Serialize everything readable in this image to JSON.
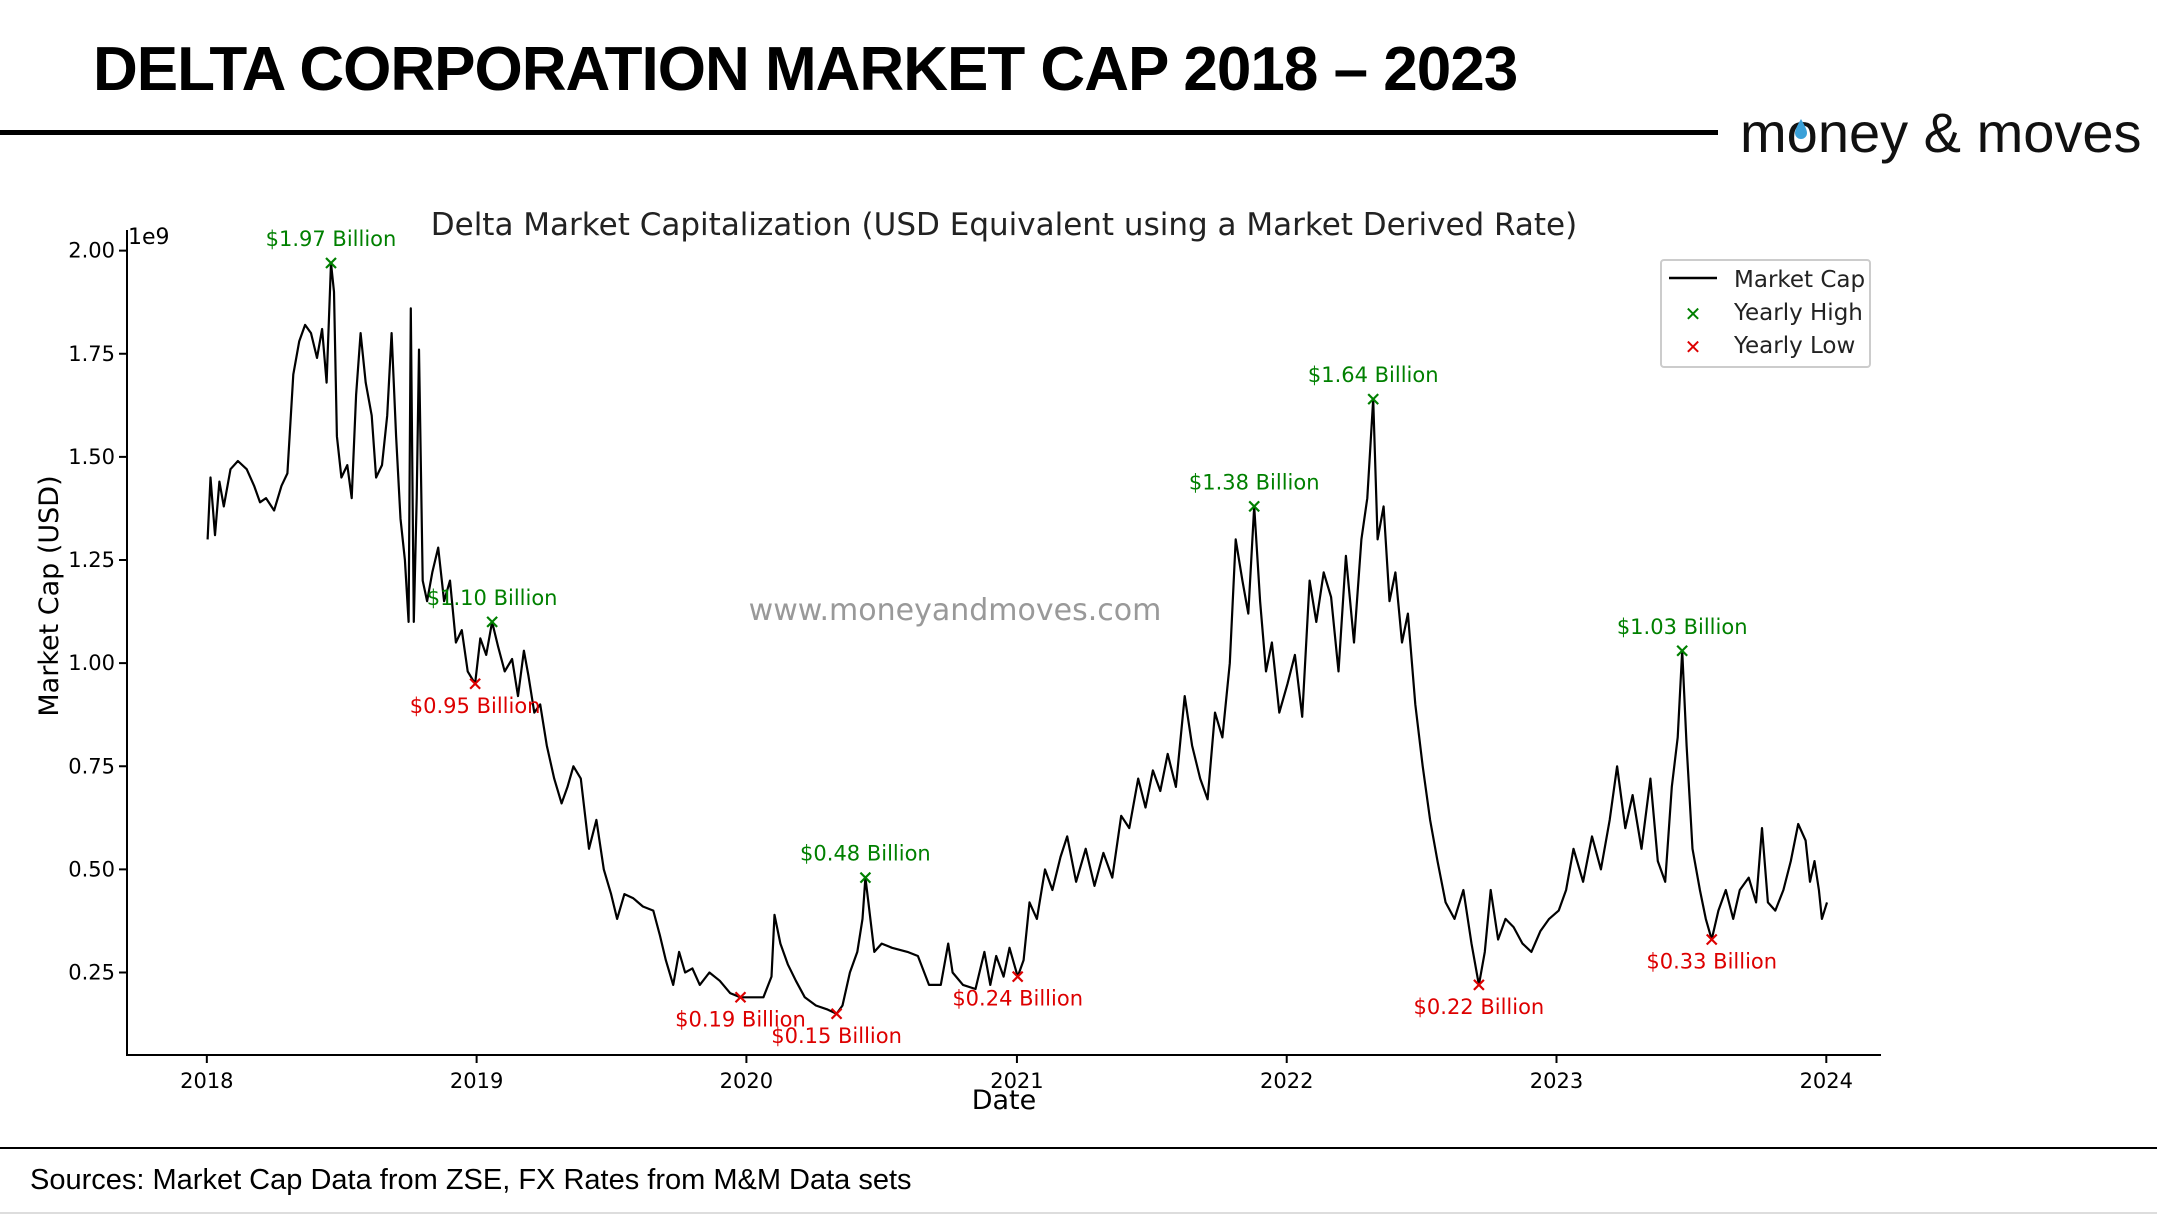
{
  "header": {
    "title": "DELTA CORPORATION MARKET CAP 2018 – 2023",
    "logo_text": "money & moves",
    "logo_prefix": "m",
    "logo_o": "o",
    "logo_suffix": "ney & moves",
    "accent_color": "#3aa0d8"
  },
  "footer": {
    "sources": "Sources: Market Cap Data from ZSE, FX Rates from M&M Data sets"
  },
  "chart_data": {
    "type": "line",
    "title": "Delta Market Capitalization (USD Equivalent using a Market Derived Rate)",
    "xlabel": "Date",
    "ylabel": "Market Cap (USD)",
    "y_offset_label": "1e9",
    "watermark": "www.moneyandmoves.com",
    "xlim": [
      "2017-09-15",
      "2024-03-15"
    ],
    "ylim": [
      0.05,
      2.05
    ],
    "y_scale": 1000000000,
    "x_ticks": [
      "2018",
      "2019",
      "2020",
      "2021",
      "2022",
      "2023",
      "2024"
    ],
    "y_ticks": [
      "0.25",
      "0.50",
      "0.75",
      "1.00",
      "1.25",
      "1.50",
      "1.75",
      "2.00"
    ],
    "y_tick_values": [
      0.25,
      0.5,
      0.75,
      1.0,
      1.25,
      1.5,
      1.75,
      2.0
    ],
    "grid": false,
    "legend": {
      "position": "top-right",
      "entries": [
        "Market Cap",
        "Yearly High",
        "Yearly Low"
      ]
    },
    "colors": {
      "line": "#000000",
      "high": "#008000",
      "low": "#dd0000",
      "watermark": "#999999"
    },
    "series": [
      {
        "name": "Market Cap",
        "points": [
          [
            "2018-01-02",
            1.3
          ],
          [
            "2018-01-06",
            1.45
          ],
          [
            "2018-01-12",
            1.31
          ],
          [
            "2018-01-18",
            1.44
          ],
          [
            "2018-01-24",
            1.38
          ],
          [
            "2018-02-02",
            1.47
          ],
          [
            "2018-02-12",
            1.49
          ],
          [
            "2018-02-24",
            1.47
          ],
          [
            "2018-03-06",
            1.43
          ],
          [
            "2018-03-14",
            1.39
          ],
          [
            "2018-03-22",
            1.4
          ],
          [
            "2018-04-02",
            1.37
          ],
          [
            "2018-04-12",
            1.43
          ],
          [
            "2018-04-20",
            1.46
          ],
          [
            "2018-04-28",
            1.7
          ],
          [
            "2018-05-06",
            1.78
          ],
          [
            "2018-05-14",
            1.82
          ],
          [
            "2018-05-22",
            1.8
          ],
          [
            "2018-05-30",
            1.74
          ],
          [
            "2018-06-06",
            1.81
          ],
          [
            "2018-06-12",
            1.68
          ],
          [
            "2018-06-18",
            1.97
          ],
          [
            "2018-06-22",
            1.9
          ],
          [
            "2018-06-26",
            1.55
          ],
          [
            "2018-07-02",
            1.45
          ],
          [
            "2018-07-10",
            1.48
          ],
          [
            "2018-07-16",
            1.4
          ],
          [
            "2018-07-22",
            1.65
          ],
          [
            "2018-07-28",
            1.8
          ],
          [
            "2018-08-04",
            1.68
          ],
          [
            "2018-08-12",
            1.6
          ],
          [
            "2018-08-18",
            1.45
          ],
          [
            "2018-08-26",
            1.48
          ],
          [
            "2018-09-02",
            1.6
          ],
          [
            "2018-09-08",
            1.8
          ],
          [
            "2018-09-14",
            1.55
          ],
          [
            "2018-09-20",
            1.35
          ],
          [
            "2018-09-26",
            1.25
          ],
          [
            "2018-10-01",
            1.1
          ],
          [
            "2018-10-04",
            1.86
          ],
          [
            "2018-10-08",
            1.1
          ],
          [
            "2018-10-12",
            1.4
          ],
          [
            "2018-10-15",
            1.76
          ],
          [
            "2018-10-20",
            1.2
          ],
          [
            "2018-10-26",
            1.15
          ],
          [
            "2018-11-02",
            1.22
          ],
          [
            "2018-11-10",
            1.28
          ],
          [
            "2018-11-18",
            1.15
          ],
          [
            "2018-11-26",
            1.2
          ],
          [
            "2018-12-04",
            1.05
          ],
          [
            "2018-12-12",
            1.08
          ],
          [
            "2018-12-20",
            0.98
          ],
          [
            "2018-12-30",
            0.95
          ],
          [
            "2019-01-06",
            1.06
          ],
          [
            "2019-01-14",
            1.02
          ],
          [
            "2019-01-22",
            1.1
          ],
          [
            "2019-01-30",
            1.04
          ],
          [
            "2019-02-08",
            0.98
          ],
          [
            "2019-02-18",
            1.01
          ],
          [
            "2019-02-26",
            0.92
          ],
          [
            "2019-03-06",
            1.03
          ],
          [
            "2019-03-12",
            0.97
          ],
          [
            "2019-03-20",
            0.88
          ],
          [
            "2019-03-28",
            0.9
          ],
          [
            "2019-04-06",
            0.8
          ],
          [
            "2019-04-16",
            0.72
          ],
          [
            "2019-04-26",
            0.66
          ],
          [
            "2019-05-04",
            0.7
          ],
          [
            "2019-05-12",
            0.75
          ],
          [
            "2019-05-22",
            0.72
          ],
          [
            "2019-06-02",
            0.55
          ],
          [
            "2019-06-12",
            0.62
          ],
          [
            "2019-06-22",
            0.5
          ],
          [
            "2019-07-02",
            0.44
          ],
          [
            "2019-07-10",
            0.38
          ],
          [
            "2019-07-20",
            0.44
          ],
          [
            "2019-08-01",
            0.43
          ],
          [
            "2019-08-14",
            0.41
          ],
          [
            "2019-08-28",
            0.4
          ],
          [
            "2019-09-06",
            0.34
          ],
          [
            "2019-09-14",
            0.28
          ],
          [
            "2019-09-24",
            0.22
          ],
          [
            "2019-10-02",
            0.3
          ],
          [
            "2019-10-10",
            0.25
          ],
          [
            "2019-10-20",
            0.26
          ],
          [
            "2019-10-30",
            0.22
          ],
          [
            "2019-11-12",
            0.25
          ],
          [
            "2019-11-26",
            0.23
          ],
          [
            "2019-12-10",
            0.2
          ],
          [
            "2019-12-24",
            0.19
          ],
          [
            "2020-01-08",
            0.19
          ],
          [
            "2020-01-24",
            0.19
          ],
          [
            "2020-02-04",
            0.24
          ],
          [
            "2020-02-08",
            0.39
          ],
          [
            "2020-02-16",
            0.32
          ],
          [
            "2020-02-26",
            0.27
          ],
          [
            "2020-03-08",
            0.23
          ],
          [
            "2020-03-20",
            0.19
          ],
          [
            "2020-04-04",
            0.17
          ],
          [
            "2020-04-20",
            0.16
          ],
          [
            "2020-05-02",
            0.15
          ],
          [
            "2020-05-10",
            0.17
          ],
          [
            "2020-05-20",
            0.25
          ],
          [
            "2020-05-30",
            0.3
          ],
          [
            "2020-06-06",
            0.38
          ],
          [
            "2020-06-10",
            0.48
          ],
          [
            "2020-06-14",
            0.42
          ],
          [
            "2020-06-22",
            0.3
          ],
          [
            "2020-07-02",
            0.32
          ],
          [
            "2020-07-16",
            0.31
          ],
          [
            "2020-08-06",
            0.3
          ],
          [
            "2020-08-20",
            0.29
          ],
          [
            "2020-09-04",
            0.22
          ],
          [
            "2020-09-20",
            0.22
          ],
          [
            "2020-09-30",
            0.32
          ],
          [
            "2020-10-06",
            0.25
          ],
          [
            "2020-10-20",
            0.22
          ],
          [
            "2020-11-06",
            0.21
          ],
          [
            "2020-11-18",
            0.3
          ],
          [
            "2020-11-26",
            0.22
          ],
          [
            "2020-12-04",
            0.29
          ],
          [
            "2020-12-14",
            0.24
          ],
          [
            "2020-12-22",
            0.31
          ],
          [
            "2021-01-02",
            0.24
          ],
          [
            "2021-01-10",
            0.28
          ],
          [
            "2021-01-18",
            0.42
          ],
          [
            "2021-01-28",
            0.38
          ],
          [
            "2021-02-08",
            0.5
          ],
          [
            "2021-02-18",
            0.45
          ],
          [
            "2021-03-01",
            0.53
          ],
          [
            "2021-03-10",
            0.58
          ],
          [
            "2021-03-22",
            0.47
          ],
          [
            "2021-04-04",
            0.55
          ],
          [
            "2021-04-16",
            0.46
          ],
          [
            "2021-04-28",
            0.54
          ],
          [
            "2021-05-10",
            0.48
          ],
          [
            "2021-05-22",
            0.63
          ],
          [
            "2021-06-02",
            0.6
          ],
          [
            "2021-06-14",
            0.72
          ],
          [
            "2021-06-24",
            0.65
          ],
          [
            "2021-07-04",
            0.74
          ],
          [
            "2021-07-14",
            0.69
          ],
          [
            "2021-07-24",
            0.78
          ],
          [
            "2021-08-04",
            0.7
          ],
          [
            "2021-08-16",
            0.92
          ],
          [
            "2021-08-26",
            0.8
          ],
          [
            "2021-09-06",
            0.72
          ],
          [
            "2021-09-16",
            0.67
          ],
          [
            "2021-09-26",
            0.88
          ],
          [
            "2021-10-06",
            0.82
          ],
          [
            "2021-10-16",
            1.0
          ],
          [
            "2021-10-24",
            1.3
          ],
          [
            "2021-11-02",
            1.2
          ],
          [
            "2021-11-10",
            1.12
          ],
          [
            "2021-11-18",
            1.38
          ],
          [
            "2021-11-26",
            1.15
          ],
          [
            "2021-12-04",
            0.98
          ],
          [
            "2021-12-12",
            1.05
          ],
          [
            "2021-12-22",
            0.88
          ],
          [
            "2022-01-02",
            0.95
          ],
          [
            "2022-01-12",
            1.02
          ],
          [
            "2022-01-22",
            0.87
          ],
          [
            "2022-02-01",
            1.2
          ],
          [
            "2022-02-10",
            1.1
          ],
          [
            "2022-02-20",
            1.22
          ],
          [
            "2022-03-02",
            1.16
          ],
          [
            "2022-03-12",
            0.98
          ],
          [
            "2022-03-22",
            1.26
          ],
          [
            "2022-04-02",
            1.05
          ],
          [
            "2022-04-12",
            1.3
          ],
          [
            "2022-04-20",
            1.4
          ],
          [
            "2022-04-28",
            1.64
          ],
          [
            "2022-05-04",
            1.3
          ],
          [
            "2022-05-12",
            1.38
          ],
          [
            "2022-05-20",
            1.15
          ],
          [
            "2022-05-28",
            1.22
          ],
          [
            "2022-06-06",
            1.05
          ],
          [
            "2022-06-14",
            1.12
          ],
          [
            "2022-06-24",
            0.9
          ],
          [
            "2022-07-04",
            0.75
          ],
          [
            "2022-07-14",
            0.62
          ],
          [
            "2022-07-24",
            0.52
          ],
          [
            "2022-08-04",
            0.42
          ],
          [
            "2022-08-16",
            0.38
          ],
          [
            "2022-08-28",
            0.45
          ],
          [
            "2022-09-08",
            0.32
          ],
          [
            "2022-09-18",
            0.22
          ],
          [
            "2022-09-26",
            0.3
          ],
          [
            "2022-10-04",
            0.45
          ],
          [
            "2022-10-14",
            0.33
          ],
          [
            "2022-10-24",
            0.38
          ],
          [
            "2022-11-04",
            0.36
          ],
          [
            "2022-11-16",
            0.32
          ],
          [
            "2022-11-28",
            0.3
          ],
          [
            "2022-12-10",
            0.35
          ],
          [
            "2022-12-22",
            0.38
          ],
          [
            "2023-01-04",
            0.4
          ],
          [
            "2023-01-14",
            0.45
          ],
          [
            "2023-01-24",
            0.55
          ],
          [
            "2023-02-06",
            0.47
          ],
          [
            "2023-02-18",
            0.58
          ],
          [
            "2023-03-02",
            0.5
          ],
          [
            "2023-03-14",
            0.62
          ],
          [
            "2023-03-24",
            0.75
          ],
          [
            "2023-04-04",
            0.6
          ],
          [
            "2023-04-14",
            0.68
          ],
          [
            "2023-04-26",
            0.55
          ],
          [
            "2023-05-08",
            0.72
          ],
          [
            "2023-05-18",
            0.52
          ],
          [
            "2023-05-28",
            0.47
          ],
          [
            "2023-06-06",
            0.7
          ],
          [
            "2023-06-14",
            0.82
          ],
          [
            "2023-06-20",
            1.03
          ],
          [
            "2023-06-26",
            0.8
          ],
          [
            "2023-07-04",
            0.55
          ],
          [
            "2023-07-14",
            0.45
          ],
          [
            "2023-07-22",
            0.38
          ],
          [
            "2023-07-30",
            0.33
          ],
          [
            "2023-08-08",
            0.4
          ],
          [
            "2023-08-18",
            0.45
          ],
          [
            "2023-08-28",
            0.38
          ],
          [
            "2023-09-06",
            0.45
          ],
          [
            "2023-09-18",
            0.48
          ],
          [
            "2023-09-28",
            0.42
          ],
          [
            "2023-10-06",
            0.6
          ],
          [
            "2023-10-14",
            0.42
          ],
          [
            "2023-10-24",
            0.4
          ],
          [
            "2023-11-04",
            0.45
          ],
          [
            "2023-11-14",
            0.52
          ],
          [
            "2023-11-24",
            0.61
          ],
          [
            "2023-12-04",
            0.57
          ],
          [
            "2023-12-10",
            0.47
          ],
          [
            "2023-12-16",
            0.52
          ],
          [
            "2023-12-22",
            0.45
          ],
          [
            "2023-12-26",
            0.38
          ],
          [
            "2024-01-02",
            0.42
          ]
        ]
      }
    ],
    "yearly_highs": [
      {
        "date": "2018-06-18",
        "value": 1.97,
        "label": "$1.97 Billion"
      },
      {
        "date": "2019-01-22",
        "value": 1.1,
        "label": "$1.10 Billion"
      },
      {
        "date": "2020-06-10",
        "value": 0.48,
        "label": "$0.48 Billion"
      },
      {
        "date": "2021-11-18",
        "value": 1.38,
        "label": "$1.38 Billion"
      },
      {
        "date": "2022-04-28",
        "value": 1.64,
        "label": "$1.64 Billion"
      },
      {
        "date": "2023-06-20",
        "value": 1.03,
        "label": "$1.03 Billion"
      }
    ],
    "yearly_lows": [
      {
        "date": "2018-12-30",
        "value": 0.95,
        "label": "$0.95 Billion"
      },
      {
        "date": "2019-12-24",
        "value": 0.19,
        "label": "$0.19 Billion"
      },
      {
        "date": "2020-05-02",
        "value": 0.15,
        "label": "$0.15 Billion"
      },
      {
        "date": "2021-01-02",
        "value": 0.24,
        "label": "$0.24 Billion"
      },
      {
        "date": "2022-09-18",
        "value": 0.22,
        "label": "$0.22 Billion"
      },
      {
        "date": "2023-07-30",
        "value": 0.33,
        "label": "$0.33 Billion"
      }
    ]
  }
}
